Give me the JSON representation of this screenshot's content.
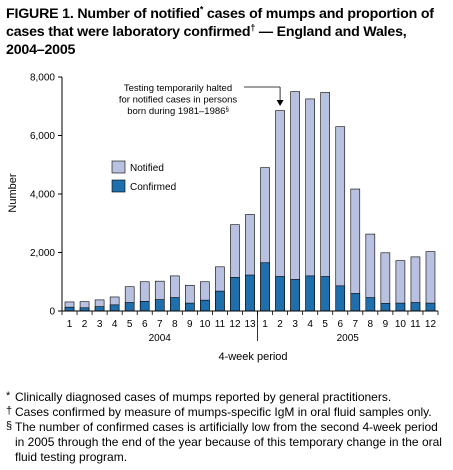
{
  "title": {
    "part1": "FIGURE 1. Number of notified",
    "mark1": "*",
    "part2": " cases of mumps and proportion of cases that were laboratory confirmed",
    "mark2": "†",
    "part3": " — England and Wales, 2004–2005"
  },
  "annotation": {
    "lines": [
      "Testing temporarily halted",
      "for notified cases in persons",
      "born during 1981–1986"
    ],
    "mark": "§"
  },
  "footnotes": [
    {
      "mark": "*",
      "text": "Clinically diagnosed cases of mumps reported by general practitioners."
    },
    {
      "mark": "†",
      "text": "Cases confirmed by measure of mumps-specific IgM in oral fluid samples only."
    },
    {
      "mark": "§",
      "text": "The number of confirmed cases is artificially low from the second 4-week period in 2005 through the end of the year because of this temporary change in the oral fluid testing program."
    }
  ],
  "colors": {
    "notified": "#b8c2e0",
    "confirmed": "#1f6fad",
    "outline": "#000000"
  },
  "chart_data": {
    "type": "bar",
    "stacked": "overlay",
    "xlabel": "4-week period",
    "ylabel": "Number",
    "ylim": [
      0,
      8000
    ],
    "yticks": [
      0,
      2000,
      4000,
      6000,
      8000
    ],
    "ytick_labels": [
      "0",
      "2,000",
      "4,000",
      "6,000",
      "8,000"
    ],
    "categories": [
      "1",
      "2",
      "3",
      "4",
      "5",
      "6",
      "7",
      "8",
      "9",
      "10",
      "11",
      "12",
      "13",
      "1",
      "2",
      "3",
      "4",
      "5",
      "6",
      "7",
      "8",
      "9",
      "10",
      "11",
      "12"
    ],
    "groups": [
      {
        "label": "2004",
        "start": 0,
        "end": 12
      },
      {
        "label": "2005",
        "start": 13,
        "end": 24
      }
    ],
    "series": [
      {
        "name": "Notified",
        "values": [
          310,
          320,
          380,
          480,
          830,
          1000,
          1020,
          1200,
          880,
          1000,
          1510,
          2950,
          3300,
          4900,
          6850,
          7500,
          7250,
          7470,
          6300,
          4170,
          2630,
          1990,
          1720,
          1850,
          2030
        ]
      },
      {
        "name": "Confirmed",
        "values": [
          130,
          110,
          150,
          210,
          290,
          330,
          390,
          460,
          270,
          370,
          680,
          1150,
          1230,
          1650,
          1180,
          1080,
          1200,
          1180,
          860,
          600,
          460,
          260,
          270,
          290,
          270
        ]
      }
    ],
    "legend": {
      "position": "middle-left"
    },
    "annotation_target_index": 14,
    "grid": false
  }
}
